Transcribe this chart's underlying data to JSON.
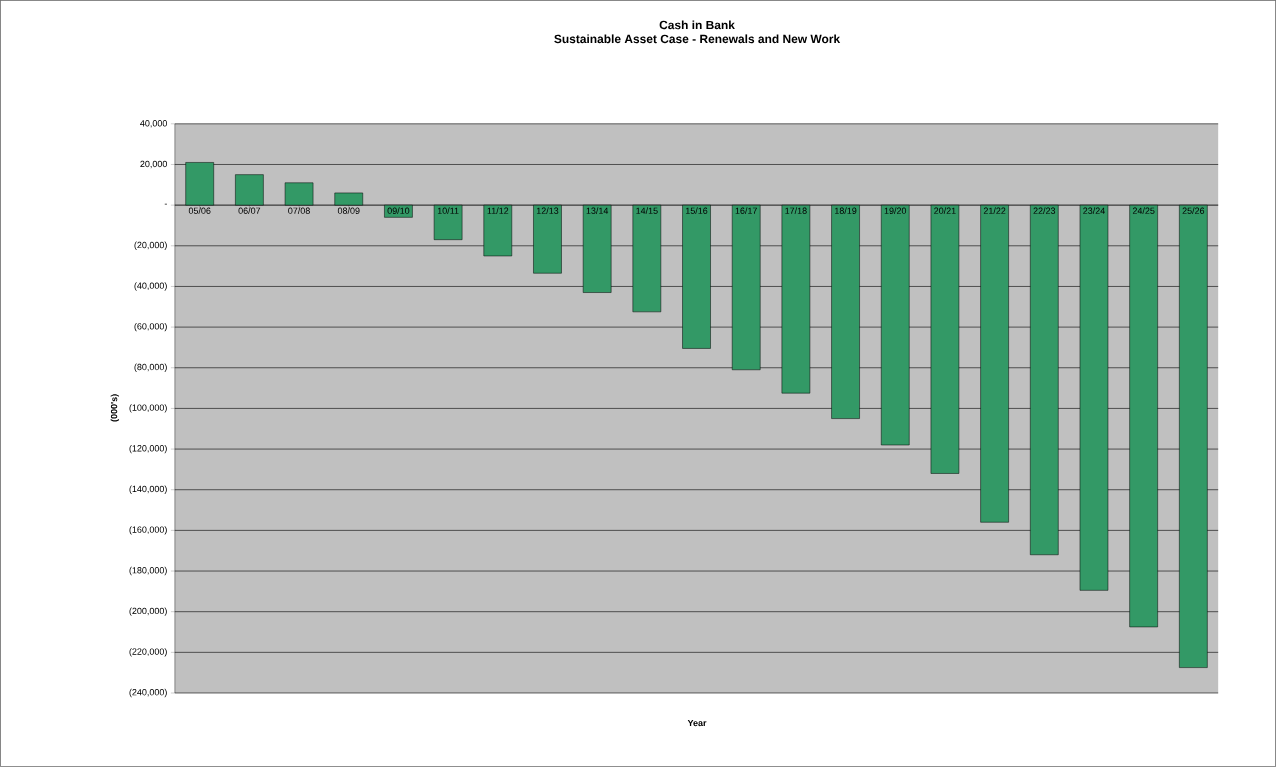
{
  "chart_data": {
    "type": "bar",
    "title": "Cash in Bank",
    "subtitle": "Sustainable Asset Case - Renewals and New Work",
    "xlabel": "Year",
    "ylabel": "(000's)",
    "categories": [
      "05/06",
      "06/07",
      "07/08",
      "08/09",
      "09/10",
      "10/11",
      "11/12",
      "12/13",
      "13/14",
      "14/15",
      "15/16",
      "16/17",
      "17/18",
      "18/19",
      "19/20",
      "20/21",
      "21/22",
      "22/23",
      "23/24",
      "24/25",
      "25/26"
    ],
    "values": [
      21000,
      15000,
      11000,
      6000,
      -6000,
      -17000,
      -25000,
      -33500,
      -43000,
      -52500,
      -70500,
      -81000,
      -92500,
      -105000,
      -118000,
      -132000,
      -156000,
      -172000,
      -189500,
      -207500,
      -227500
    ],
    "color": "#339966",
    "ylim": [
      -240000,
      40000
    ],
    "yticks": [
      {
        "value": -240000,
        "label": "(240,000)"
      },
      {
        "value": -220000,
        "label": "(220,000)"
      },
      {
        "value": -200000,
        "label": "(200,000)"
      },
      {
        "value": -180000,
        "label": "(180,000)"
      },
      {
        "value": -160000,
        "label": "(160,000)"
      },
      {
        "value": -140000,
        "label": "(140,000)"
      },
      {
        "value": -120000,
        "label": "(120,000)"
      },
      {
        "value": -100000,
        "label": "(100,000)"
      },
      {
        "value": -80000,
        "label": "(80,000)"
      },
      {
        "value": -60000,
        "label": "(60,000)"
      },
      {
        "value": -40000,
        "label": "(40,000)"
      },
      {
        "value": -20000,
        "label": "(20,000)"
      },
      {
        "value": 0,
        "label": "-"
      },
      {
        "value": 20000,
        "label": "20,000"
      },
      {
        "value": 40000,
        "label": "40,000"
      }
    ],
    "grid": "y"
  }
}
